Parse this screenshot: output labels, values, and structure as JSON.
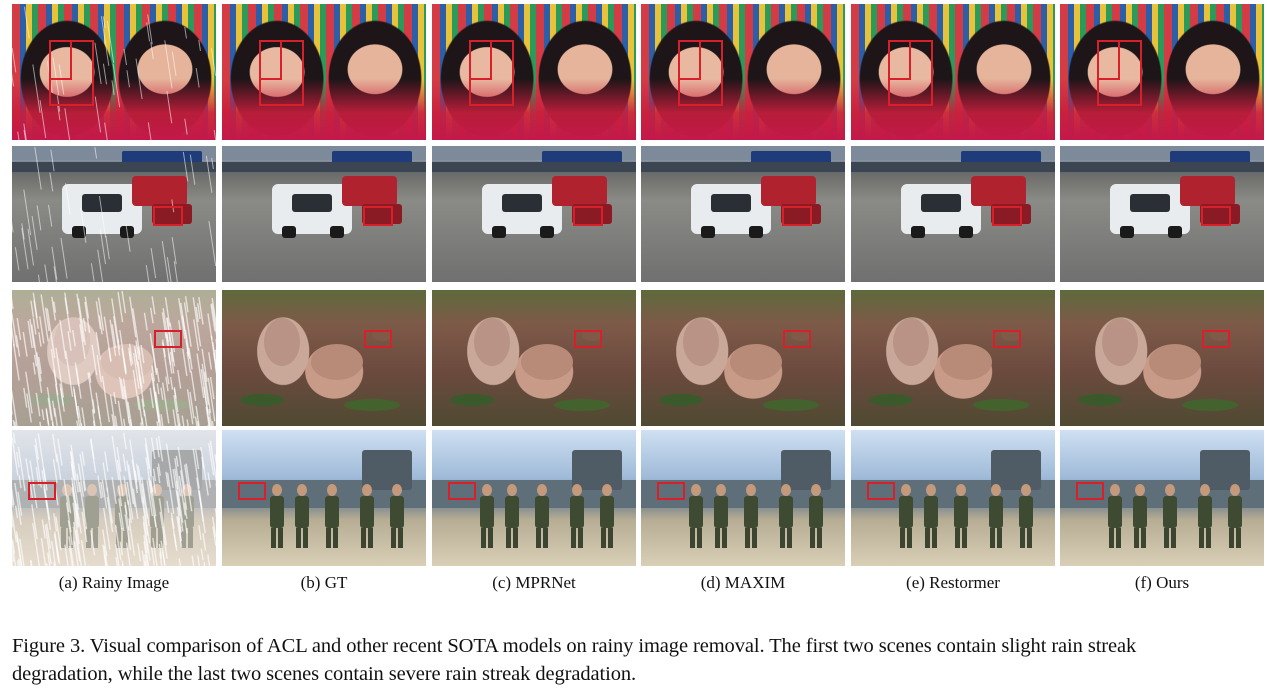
{
  "columns": [
    "(a) Rainy Image",
    "(b) GT",
    "(c) MPRNet",
    "(d) MAXIM",
    "(e) Restormer",
    "(f) Ours"
  ],
  "rows": [
    {
      "scene": "two women in traditional costume",
      "rain": "slight"
    },
    {
      "scene": "race cars on track with Castrol banner",
      "rain": "slight"
    },
    {
      "scene": "two prairie dogs on ground",
      "rain": "severe"
    },
    {
      "scene": "pilots walking in front of fighter jets",
      "rain": "severe"
    }
  ],
  "caption": "Figure 3. Visual comparison of ACL and other recent SOTA models on rainy image removal. The first two scenes contain slight rain streak degradation, while the last two scenes contain severe rain streak degradation.",
  "caption_lines": [
    "Figure 3. Visual comparison of ACL and other recent SOTA models on rainy image removal. The first two scenes contain slight rain streak",
    "degradation, while the last two scenes contain severe rain streak degradation."
  ],
  "colors": {
    "highlight_box": "#d8202a"
  }
}
